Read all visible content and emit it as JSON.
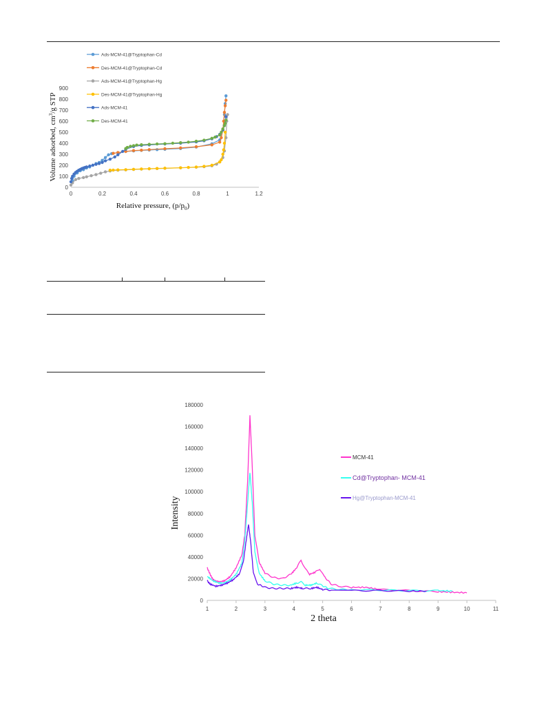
{
  "chart_data": [
    {
      "type": "scatter",
      "title": "",
      "xlabel": "Relative pressure, (p/p",
      "xlabel_sub": "0",
      "xlabel_end": ")",
      "ylabel": "Volume adsorbed, cm",
      "ylabel_sup": "3",
      "ylabel_end": "/g STP",
      "xlim": [
        0,
        1.2
      ],
      "ylim": [
        0,
        900
      ],
      "xticks": [
        "0",
        "0.2",
        "0.4",
        "0.6",
        "0.8",
        "1",
        "1.2"
      ],
      "yticks": [
        "0",
        "100",
        "200",
        "300",
        "400",
        "500",
        "600",
        "700",
        "800",
        "900"
      ],
      "legend_position": "top-left",
      "series": [
        {
          "name": "Ads-MCM-41@Tryptophan-Cd",
          "color": "#5b9bd5",
          "points": [
            [
              0.01,
              60
            ],
            [
              0.02,
              100
            ],
            [
              0.04,
              130
            ],
            [
              0.06,
              150
            ],
            [
              0.08,
              160
            ],
            [
              0.1,
              175
            ],
            [
              0.12,
              185
            ],
            [
              0.14,
              200
            ],
            [
              0.16,
              215
            ],
            [
              0.18,
              225
            ],
            [
              0.2,
              245
            ],
            [
              0.22,
              270
            ],
            [
              0.24,
              295
            ],
            [
              0.26,
              305
            ],
            [
              0.3,
              315
            ],
            [
              0.35,
              325
            ],
            [
              0.4,
              330
            ],
            [
              0.45,
              335
            ],
            [
              0.5,
              338
            ],
            [
              0.55,
              342
            ],
            [
              0.6,
              345
            ],
            [
              0.7,
              352
            ],
            [
              0.8,
              365
            ],
            [
              0.9,
              395
            ],
            [
              0.95,
              430
            ],
            [
              0.97,
              520
            ],
            [
              0.98,
              660
            ],
            [
              0.985,
              760
            ],
            [
              0.99,
              830
            ]
          ]
        },
        {
          "name": "Des-MCM-41@Tryptophan-Cd",
          "color": "#ed7d31",
          "points": [
            [
              0.99,
              790
            ],
            [
              0.985,
              740
            ],
            [
              0.98,
              680
            ],
            [
              0.975,
              600
            ],
            [
              0.97,
              520
            ],
            [
              0.96,
              450
            ],
            [
              0.95,
              410
            ],
            [
              0.9,
              385
            ],
            [
              0.8,
              368
            ],
            [
              0.7,
              357
            ],
            [
              0.6,
              350
            ],
            [
              0.5,
              342
            ],
            [
              0.45,
              337
            ],
            [
              0.4,
              333
            ],
            [
              0.35,
              325
            ],
            [
              0.3,
              315
            ],
            [
              0.27,
              308
            ]
          ]
        },
        {
          "name": "Ads-MCM-41@Tryptophan-Hg",
          "color": "#a5a5a5",
          "points": [
            [
              0.0,
              20
            ],
            [
              0.01,
              40
            ],
            [
              0.03,
              70
            ],
            [
              0.05,
              80
            ],
            [
              0.08,
              88
            ],
            [
              0.1,
              95
            ],
            [
              0.13,
              105
            ],
            [
              0.16,
              115
            ],
            [
              0.19,
              128
            ],
            [
              0.22,
              140
            ],
            [
              0.25,
              148
            ],
            [
              0.3,
              155
            ],
            [
              0.35,
              158
            ],
            [
              0.4,
              162
            ],
            [
              0.45,
              165
            ],
            [
              0.5,
              168
            ],
            [
              0.55,
              170
            ],
            [
              0.6,
              172
            ],
            [
              0.7,
              177
            ],
            [
              0.8,
              182
            ],
            [
              0.85,
              187
            ],
            [
              0.9,
              195
            ],
            [
              0.93,
              210
            ],
            [
              0.95,
              230
            ],
            [
              0.97,
              270
            ],
            [
              0.98,
              330
            ],
            [
              0.99,
              450
            ],
            [
              0.995,
              600
            ],
            [
              1.0,
              660
            ]
          ]
        },
        {
          "name": "Des-MCM-41@Tryptophan-Hg",
          "color": "#ffc000",
          "points": [
            [
              0.985,
              500
            ],
            [
              0.98,
              400
            ],
            [
              0.975,
              340
            ],
            [
              0.97,
              300
            ],
            [
              0.96,
              250
            ],
            [
              0.95,
              230
            ],
            [
              0.9,
              200
            ],
            [
              0.85,
              190
            ],
            [
              0.8,
              184
            ],
            [
              0.75,
              180
            ],
            [
              0.7,
              177
            ],
            [
              0.6,
              173
            ],
            [
              0.55,
              171
            ],
            [
              0.5,
              168
            ],
            [
              0.45,
              166
            ],
            [
              0.4,
              163
            ],
            [
              0.35,
              160
            ],
            [
              0.3,
              158
            ],
            [
              0.27,
              156
            ],
            [
              0.25,
              155
            ]
          ]
        },
        {
          "name": "Ads-MCM-41",
          "color": "#4472c4",
          "points": [
            [
              0.0,
              50
            ],
            [
              0.005,
              80
            ],
            [
              0.01,
              100
            ],
            [
              0.02,
              120
            ],
            [
              0.03,
              135
            ],
            [
              0.04,
              145
            ],
            [
              0.05,
              155
            ],
            [
              0.06,
              162
            ],
            [
              0.07,
              170
            ],
            [
              0.08,
              175
            ],
            [
              0.09,
              180
            ],
            [
              0.1,
              185
            ],
            [
              0.12,
              193
            ],
            [
              0.14,
              200
            ],
            [
              0.16,
              208
            ],
            [
              0.18,
              215
            ],
            [
              0.2,
              225
            ],
            [
              0.22,
              240
            ],
            [
              0.25,
              255
            ],
            [
              0.28,
              275
            ],
            [
              0.3,
              295
            ],
            [
              0.33,
              325
            ],
            [
              0.35,
              345
            ],
            [
              0.4,
              370
            ],
            [
              0.45,
              380
            ],
            [
              0.5,
              385
            ],
            [
              0.6,
              393
            ],
            [
              0.7,
              400
            ],
            [
              0.8,
              412
            ],
            [
              0.85,
              422
            ],
            [
              0.9,
              440
            ],
            [
              0.93,
              460
            ],
            [
              0.95,
              480
            ],
            [
              0.97,
              520
            ],
            [
              0.98,
              560
            ],
            [
              0.99,
              640
            ]
          ]
        },
        {
          "name": "Des-MCM-41",
          "color": "#70ad47",
          "points": [
            [
              0.99,
              610
            ],
            [
              0.985,
              580
            ],
            [
              0.98,
              560
            ],
            [
              0.97,
              530
            ],
            [
              0.96,
              500
            ],
            [
              0.95,
              475
            ],
            [
              0.92,
              455
            ],
            [
              0.9,
              445
            ],
            [
              0.85,
              428
            ],
            [
              0.8,
              418
            ],
            [
              0.75,
              410
            ],
            [
              0.7,
              405
            ],
            [
              0.65,
              400
            ],
            [
              0.6,
              396
            ],
            [
              0.55,
              393
            ],
            [
              0.5,
              390
            ],
            [
              0.45,
              386
            ],
            [
              0.42,
              383
            ],
            [
              0.4,
              378
            ],
            [
              0.38,
              372
            ],
            [
              0.36,
              362
            ],
            [
              0.35,
              352
            ]
          ]
        }
      ]
    },
    {
      "type": "line",
      "title": "",
      "xlabel": "2 theta",
      "ylabel": "Intensity",
      "xlim": [
        1,
        11
      ],
      "ylim": [
        0,
        180000
      ],
      "xticks": [
        "1",
        "2",
        "3",
        "4",
        "5",
        "6",
        "7",
        "8",
        "9",
        "10",
        "11"
      ],
      "yticks": [
        "0",
        "20000",
        "40000",
        "60000",
        "80000",
        "100000",
        "120000",
        "140000",
        "160000",
        "180000"
      ],
      "legend_position": "right",
      "series": [
        {
          "name": "MCM-41",
          "color": "#ff33cc",
          "points": [
            [
              1,
              30000
            ],
            [
              1.1,
              24000
            ],
            [
              1.2,
              19000
            ],
            [
              1.4,
              17000
            ],
            [
              1.6,
              18000
            ],
            [
              1.8,
              22000
            ],
            [
              2.0,
              30000
            ],
            [
              2.2,
              42000
            ],
            [
              2.3,
              60000
            ],
            [
              2.4,
              110000
            ],
            [
              2.48,
              170000
            ],
            [
              2.55,
              130000
            ],
            [
              2.65,
              60000
            ],
            [
              2.8,
              35000
            ],
            [
              3.0,
              25000
            ],
            [
              3.3,
              21000
            ],
            [
              3.6,
              20000
            ],
            [
              3.9,
              24000
            ],
            [
              4.1,
              30000
            ],
            [
              4.25,
              37000
            ],
            [
              4.4,
              29000
            ],
            [
              4.55,
              24000
            ],
            [
              4.75,
              26000
            ],
            [
              4.9,
              29000
            ],
            [
              5.05,
              22000
            ],
            [
              5.3,
              15000
            ],
            [
              5.6,
              13000
            ],
            [
              6,
              12000
            ],
            [
              6.5,
              12000
            ],
            [
              7,
              10000
            ],
            [
              8,
              9000
            ],
            [
              9,
              8000
            ],
            [
              9.5,
              7500
            ],
            [
              10,
              7000
            ]
          ]
        },
        {
          "name": "Cd@Tryptophan- MCM-41",
          "color": "#33ffee",
          "points": [
            [
              1,
              22000
            ],
            [
              1.2,
              18000
            ],
            [
              1.4,
              16000
            ],
            [
              1.6,
              16000
            ],
            [
              1.8,
              19000
            ],
            [
              2.0,
              24000
            ],
            [
              2.2,
              34000
            ],
            [
              2.3,
              55000
            ],
            [
              2.4,
              90000
            ],
            [
              2.48,
              118000
            ],
            [
              2.56,
              90000
            ],
            [
              2.65,
              45000
            ],
            [
              2.8,
              25000
            ],
            [
              3.0,
              18000
            ],
            [
              3.3,
              15000
            ],
            [
              3.6,
              14000
            ],
            [
              3.9,
              14000
            ],
            [
              4.1,
              16000
            ],
            [
              4.25,
              17000
            ],
            [
              4.4,
              14000
            ],
            [
              4.6,
              14000
            ],
            [
              4.8,
              16000
            ],
            [
              4.95,
              14000
            ],
            [
              5.2,
              11000
            ],
            [
              5.6,
              10000
            ],
            [
              6,
              10000
            ],
            [
              7,
              9500
            ],
            [
              8,
              9000
            ],
            [
              9,
              9000
            ],
            [
              9.5,
              8500
            ]
          ]
        },
        {
          "name": "Hg@Tryptophan-MCM-41",
          "color": "#6611ee",
          "points": [
            [
              1,
              18000
            ],
            [
              1.1,
              15000
            ],
            [
              1.3,
              13000
            ],
            [
              1.5,
              14000
            ],
            [
              1.7,
              16000
            ],
            [
              1.9,
              19000
            ],
            [
              2.1,
              24000
            ],
            [
              2.25,
              35000
            ],
            [
              2.35,
              55000
            ],
            [
              2.43,
              70000
            ],
            [
              2.5,
              55000
            ],
            [
              2.6,
              25000
            ],
            [
              2.75,
              15000
            ],
            [
              3.0,
              12000
            ],
            [
              3.3,
              11000
            ],
            [
              3.6,
              11000
            ],
            [
              3.9,
              11000
            ],
            [
              4.1,
              12000
            ],
            [
              4.3,
              11000
            ],
            [
              4.6,
              11000
            ],
            [
              4.8,
              12000
            ],
            [
              5.0,
              10000
            ],
            [
              5.3,
              9500
            ],
            [
              6,
              9000
            ],
            [
              7,
              9000
            ],
            [
              8,
              8500
            ],
            [
              8.6,
              8500
            ]
          ]
        }
      ]
    }
  ]
}
